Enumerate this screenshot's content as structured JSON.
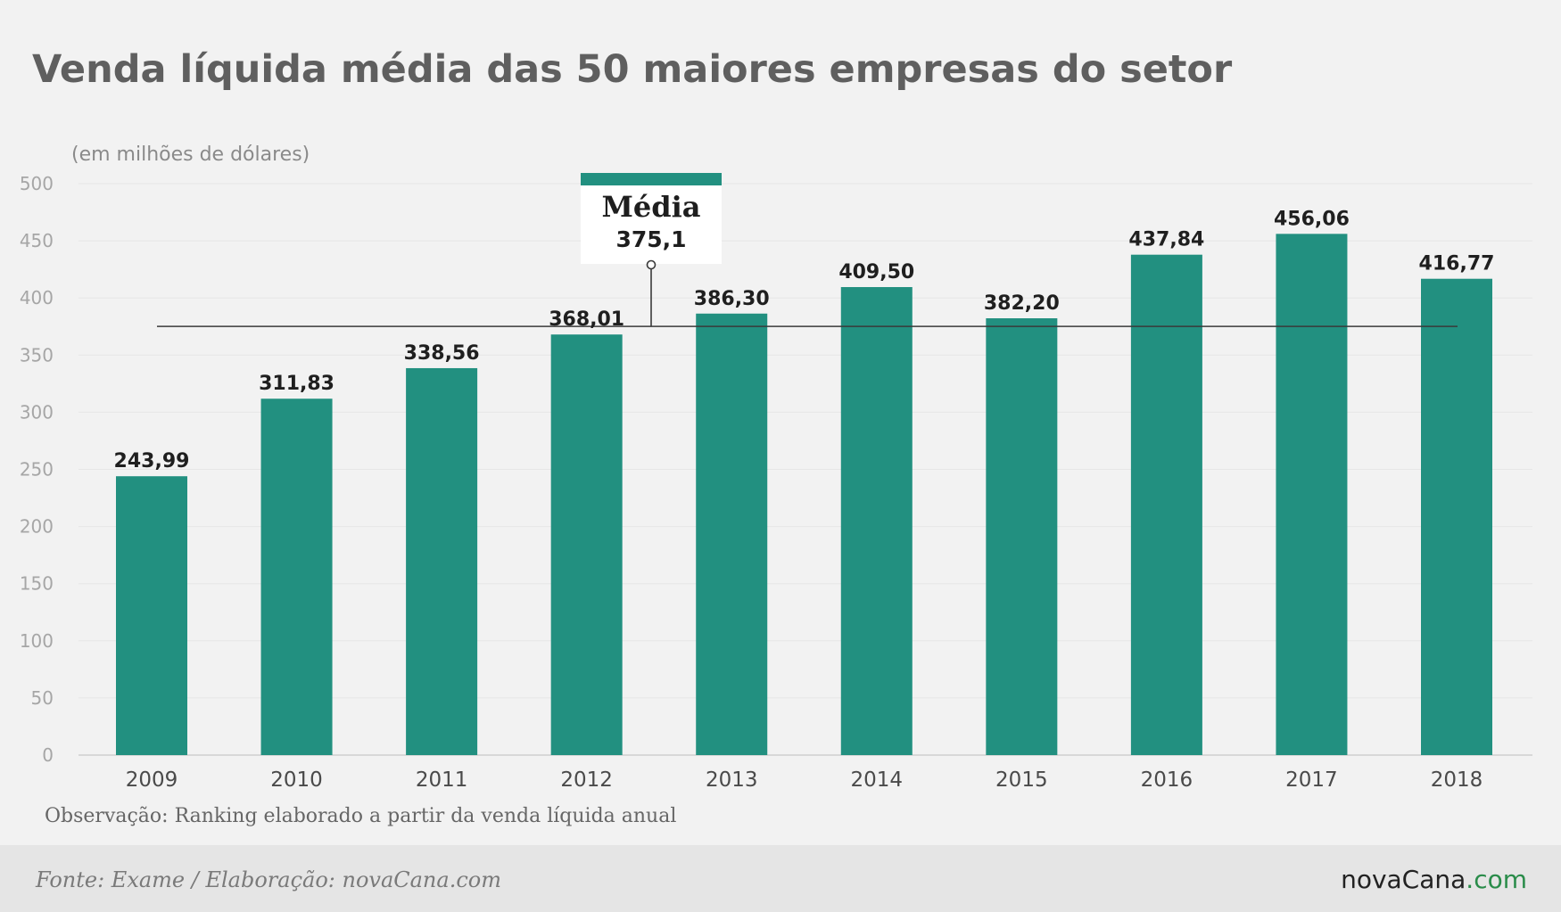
{
  "colors": {
    "bar": "#229080",
    "background": "#f2f2f2",
    "footer": "#e5e5e5",
    "average_line": "#3a3a3a",
    "brand_dot_com": "#2a8c4a"
  },
  "footer": {
    "source": "Fonte: Exame / Elaboração: novaCana.com",
    "logo_main": "novaCana",
    "logo_suffix": ".com"
  },
  "chart_data": {
    "type": "bar",
    "title": "Venda líquida média das 50 maiores empresas do setor",
    "unit_label": "(em milhões de dólares)",
    "note": "Observação: Ranking elaborado a partir da venda líquida anual",
    "categories": [
      "2009",
      "2010",
      "2011",
      "2012",
      "2013",
      "2014",
      "2015",
      "2016",
      "2017",
      "2018"
    ],
    "values": [
      243.99,
      311.83,
      338.56,
      368.01,
      386.3,
      409.5,
      382.2,
      437.84,
      456.06,
      416.77
    ],
    "value_labels": [
      "243,99",
      "311,83",
      "338,56",
      "368,01",
      "386,30",
      "409,50",
      "382,20",
      "437,84",
      "456,06",
      "416,77"
    ],
    "ylim": [
      0,
      500
    ],
    "yticks": [
      0,
      50,
      100,
      150,
      200,
      250,
      300,
      350,
      400,
      450,
      500
    ],
    "grid": true,
    "legend": "none",
    "average": {
      "value": 375.1,
      "title": "Média",
      "label": "375,1"
    }
  }
}
